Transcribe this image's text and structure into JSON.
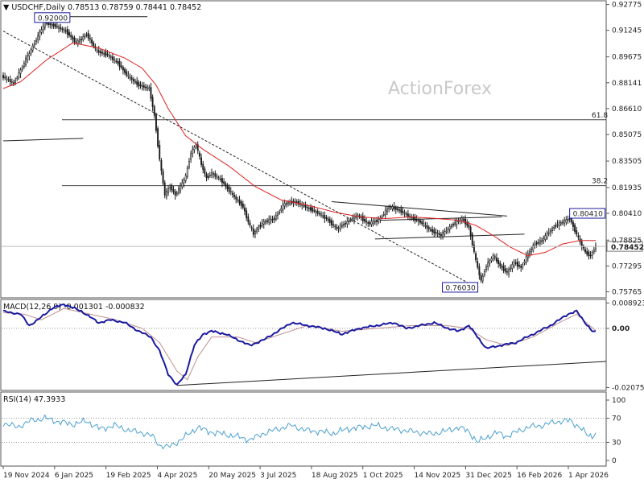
{
  "chart_data": {
    "type": "candlestick",
    "symbol": "USDCHF",
    "timeframe": "Daily",
    "ohlc_header": {
      "open": "0.78513",
      "high": "0.78759",
      "low": "0.78441",
      "close": "0.78452"
    },
    "watermark": "ActionForex",
    "price_ticks": [
      "0.92775",
      "0.91245",
      "0.89675",
      "0.88141",
      "0.86610",
      "0.85075",
      "0.83505",
      "0.81935",
      "0.80410",
      "0.78825",
      "0.77295",
      "0.75765"
    ],
    "price_ylim": [
      0.7555,
      0.9285
    ],
    "last_price": "0.78452",
    "x_tick_labels": [
      "19 Nov 2024",
      "6 Jan 2025",
      "19 Feb 2025",
      "4 Apr 2025",
      "20 May 2025",
      "3 Jul 2025",
      "18 Aug 2025",
      "1 Oct 2025",
      "14 Nov 2025",
      "31 Dec 2025",
      "16 Feb 2026",
      "1 Apr 2026"
    ],
    "price_labels": [
      {
        "text": "0.92000",
        "date_index": 18,
        "price": 0.92
      },
      {
        "text": "0.80410",
        "date_index": 326,
        "price": 0.8041
      },
      {
        "text": "0.76030",
        "date_index": 275,
        "price": 0.7603
      }
    ],
    "fib_levels": [
      {
        "label": "61.8",
        "price": 0.8595
      },
      {
        "label": "38.2",
        "price": 0.8205
      }
    ],
    "close_series": [
      {
        "i": 0,
        "v": 0.885
      },
      {
        "i": 6,
        "v": 0.881
      },
      {
        "i": 12,
        "v": 0.893
      },
      {
        "i": 18,
        "v": 0.905
      },
      {
        "i": 24,
        "v": 0.917
      },
      {
        "i": 30,
        "v": 0.915
      },
      {
        "i": 36,
        "v": 0.912
      },
      {
        "i": 42,
        "v": 0.905
      },
      {
        "i": 48,
        "v": 0.91
      },
      {
        "i": 54,
        "v": 0.9
      },
      {
        "i": 60,
        "v": 0.898
      },
      {
        "i": 66,
        "v": 0.893
      },
      {
        "i": 72,
        "v": 0.885
      },
      {
        "i": 78,
        "v": 0.88
      },
      {
        "i": 84,
        "v": 0.878
      },
      {
        "i": 87,
        "v": 0.862
      },
      {
        "i": 90,
        "v": 0.836
      },
      {
        "i": 93,
        "v": 0.815
      },
      {
        "i": 96,
        "v": 0.82
      },
      {
        "i": 99,
        "v": 0.815
      },
      {
        "i": 102,
        "v": 0.82
      },
      {
        "i": 105,
        "v": 0.826
      },
      {
        "i": 108,
        "v": 0.84
      },
      {
        "i": 111,
        "v": 0.845
      },
      {
        "i": 114,
        "v": 0.833
      },
      {
        "i": 117,
        "v": 0.825
      },
      {
        "i": 120,
        "v": 0.828
      },
      {
        "i": 126,
        "v": 0.823
      },
      {
        "i": 132,
        "v": 0.815
      },
      {
        "i": 138,
        "v": 0.808
      },
      {
        "i": 141,
        "v": 0.799
      },
      {
        "i": 144,
        "v": 0.792
      },
      {
        "i": 147,
        "v": 0.796
      },
      {
        "i": 150,
        "v": 0.799
      },
      {
        "i": 156,
        "v": 0.801
      },
      {
        "i": 162,
        "v": 0.81
      },
      {
        "i": 168,
        "v": 0.811
      },
      {
        "i": 174,
        "v": 0.808
      },
      {
        "i": 180,
        "v": 0.805
      },
      {
        "i": 186,
        "v": 0.801
      },
      {
        "i": 192,
        "v": 0.795
      },
      {
        "i": 198,
        "v": 0.799
      },
      {
        "i": 204,
        "v": 0.803
      },
      {
        "i": 210,
        "v": 0.798
      },
      {
        "i": 216,
        "v": 0.8
      },
      {
        "i": 222,
        "v": 0.808
      },
      {
        "i": 228,
        "v": 0.806
      },
      {
        "i": 234,
        "v": 0.802
      },
      {
        "i": 240,
        "v": 0.799
      },
      {
        "i": 246,
        "v": 0.794
      },
      {
        "i": 252,
        "v": 0.791
      },
      {
        "i": 258,
        "v": 0.797
      },
      {
        "i": 264,
        "v": 0.801
      },
      {
        "i": 268,
        "v": 0.796
      },
      {
        "i": 272,
        "v": 0.776
      },
      {
        "i": 275,
        "v": 0.764
      },
      {
        "i": 278,
        "v": 0.773
      },
      {
        "i": 282,
        "v": 0.779
      },
      {
        "i": 286,
        "v": 0.773
      },
      {
        "i": 290,
        "v": 0.769
      },
      {
        "i": 294,
        "v": 0.775
      },
      {
        "i": 298,
        "v": 0.772
      },
      {
        "i": 302,
        "v": 0.78
      },
      {
        "i": 306,
        "v": 0.786
      },
      {
        "i": 310,
        "v": 0.788
      },
      {
        "i": 314,
        "v": 0.793
      },
      {
        "i": 318,
        "v": 0.797
      },
      {
        "i": 322,
        "v": 0.799
      },
      {
        "i": 326,
        "v": 0.801
      },
      {
        "i": 329,
        "v": 0.794
      },
      {
        "i": 332,
        "v": 0.787
      },
      {
        "i": 335,
        "v": 0.781
      },
      {
        "i": 338,
        "v": 0.779
      },
      {
        "i": 341,
        "v": 0.785
      }
    ],
    "ma_series": [
      {
        "i": 0,
        "v": 0.878
      },
      {
        "i": 10,
        "v": 0.882
      },
      {
        "i": 25,
        "v": 0.895
      },
      {
        "i": 40,
        "v": 0.905
      },
      {
        "i": 55,
        "v": 0.902
      },
      {
        "i": 70,
        "v": 0.896
      },
      {
        "i": 80,
        "v": 0.89
      },
      {
        "i": 88,
        "v": 0.88
      },
      {
        "i": 95,
        "v": 0.866
      },
      {
        "i": 105,
        "v": 0.85
      },
      {
        "i": 115,
        "v": 0.842
      },
      {
        "i": 130,
        "v": 0.832
      },
      {
        "i": 145,
        "v": 0.82
      },
      {
        "i": 160,
        "v": 0.812
      },
      {
        "i": 175,
        "v": 0.809
      },
      {
        "i": 190,
        "v": 0.805
      },
      {
        "i": 205,
        "v": 0.802
      },
      {
        "i": 220,
        "v": 0.801
      },
      {
        "i": 235,
        "v": 0.802
      },
      {
        "i": 250,
        "v": 0.801
      },
      {
        "i": 262,
        "v": 0.8
      },
      {
        "i": 272,
        "v": 0.797
      },
      {
        "i": 282,
        "v": 0.791
      },
      {
        "i": 292,
        "v": 0.784
      },
      {
        "i": 302,
        "v": 0.779
      },
      {
        "i": 312,
        "v": 0.781
      },
      {
        "i": 322,
        "v": 0.786
      },
      {
        "i": 332,
        "v": 0.788
      },
      {
        "i": 341,
        "v": 0.788
      }
    ],
    "macd": {
      "label": "MACD(12,26,9) -0.001301 -0.000832",
      "ticks": [
        "0.008923",
        "0.00",
        "-0.020759"
      ],
      "ylim": [
        -0.0212,
        0.0093
      ],
      "macd_series": [
        {
          "i": 0,
          "v": 0.006
        },
        {
          "i": 10,
          "v": 0.005
        },
        {
          "i": 15,
          "v": 0.001
        },
        {
          "i": 20,
          "v": 0.003
        },
        {
          "i": 28,
          "v": 0.007
        },
        {
          "i": 35,
          "v": 0.0085
        },
        {
          "i": 45,
          "v": 0.006
        },
        {
          "i": 55,
          "v": 0.002
        },
        {
          "i": 62,
          "v": 0.003
        },
        {
          "i": 70,
          "v": 0.002
        },
        {
          "i": 78,
          "v": -0.001
        },
        {
          "i": 85,
          "v": -0.003
        },
        {
          "i": 90,
          "v": -0.008
        },
        {
          "i": 95,
          "v": -0.016
        },
        {
          "i": 100,
          "v": -0.02
        },
        {
          "i": 105,
          "v": -0.016
        },
        {
          "i": 110,
          "v": -0.006
        },
        {
          "i": 115,
          "v": -0.002
        },
        {
          "i": 120,
          "v": -0.001
        },
        {
          "i": 128,
          "v": -0.002
        },
        {
          "i": 135,
          "v": -0.004
        },
        {
          "i": 142,
          "v": -0.006
        },
        {
          "i": 150,
          "v": -0.004
        },
        {
          "i": 158,
          "v": -0.001
        },
        {
          "i": 166,
          "v": 0.002
        },
        {
          "i": 175,
          "v": 0.001
        },
        {
          "i": 185,
          "v": 0.0
        },
        {
          "i": 195,
          "v": -0.002
        },
        {
          "i": 205,
          "v": 0.0
        },
        {
          "i": 215,
          "v": 0.001
        },
        {
          "i": 225,
          "v": 0.002
        },
        {
          "i": 232,
          "v": 0.0
        },
        {
          "i": 240,
          "v": 0.001
        },
        {
          "i": 248,
          "v": 0.002
        },
        {
          "i": 256,
          "v": 0.0
        },
        {
          "i": 262,
          "v": -0.001
        },
        {
          "i": 268,
          "v": 0.001
        },
        {
          "i": 273,
          "v": -0.003
        },
        {
          "i": 278,
          "v": -0.007
        },
        {
          "i": 286,
          "v": -0.006
        },
        {
          "i": 295,
          "v": -0.005
        },
        {
          "i": 305,
          "v": -0.002
        },
        {
          "i": 315,
          "v": 0.001
        },
        {
          "i": 325,
          "v": 0.005
        },
        {
          "i": 330,
          "v": 0.006
        },
        {
          "i": 335,
          "v": 0.002
        },
        {
          "i": 339,
          "v": -0.001
        },
        {
          "i": 341,
          "v": -0.0013
        }
      ],
      "signal_series": [
        {
          "i": 0,
          "v": 0.0055
        },
        {
          "i": 12,
          "v": 0.005
        },
        {
          "i": 22,
          "v": 0.003
        },
        {
          "i": 35,
          "v": 0.007
        },
        {
          "i": 50,
          "v": 0.005
        },
        {
          "i": 65,
          "v": 0.003
        },
        {
          "i": 80,
          "v": 0.0
        },
        {
          "i": 90,
          "v": -0.005
        },
        {
          "i": 100,
          "v": -0.015
        },
        {
          "i": 106,
          "v": -0.018
        },
        {
          "i": 112,
          "v": -0.01
        },
        {
          "i": 120,
          "v": -0.003
        },
        {
          "i": 135,
          "v": -0.003
        },
        {
          "i": 145,
          "v": -0.005
        },
        {
          "i": 160,
          "v": -0.002
        },
        {
          "i": 175,
          "v": 0.001
        },
        {
          "i": 195,
          "v": -0.001
        },
        {
          "i": 215,
          "v": 0.0
        },
        {
          "i": 235,
          "v": 0.001
        },
        {
          "i": 255,
          "v": 0.001
        },
        {
          "i": 268,
          "v": 0.0
        },
        {
          "i": 278,
          "v": -0.004
        },
        {
          "i": 290,
          "v": -0.006
        },
        {
          "i": 305,
          "v": -0.003
        },
        {
          "i": 320,
          "v": 0.002
        },
        {
          "i": 330,
          "v": 0.005
        },
        {
          "i": 341,
          "v": -0.0008
        }
      ]
    },
    "rsi": {
      "label": "RSI(14) 47.3933",
      "ticks": [
        "100",
        "70",
        "30",
        "0"
      ],
      "ylim": [
        0,
        100
      ],
      "series": [
        {
          "i": 0,
          "v": 62
        },
        {
          "i": 8,
          "v": 55
        },
        {
          "i": 16,
          "v": 66
        },
        {
          "i": 24,
          "v": 70
        },
        {
          "i": 32,
          "v": 64
        },
        {
          "i": 40,
          "v": 60
        },
        {
          "i": 48,
          "v": 65
        },
        {
          "i": 56,
          "v": 52
        },
        {
          "i": 64,
          "v": 58
        },
        {
          "i": 72,
          "v": 50
        },
        {
          "i": 80,
          "v": 46
        },
        {
          "i": 86,
          "v": 40
        },
        {
          "i": 90,
          "v": 25
        },
        {
          "i": 95,
          "v": 22
        },
        {
          "i": 100,
          "v": 30
        },
        {
          "i": 106,
          "v": 42
        },
        {
          "i": 112,
          "v": 55
        },
        {
          "i": 118,
          "v": 48
        },
        {
          "i": 126,
          "v": 44
        },
        {
          "i": 134,
          "v": 40
        },
        {
          "i": 142,
          "v": 34
        },
        {
          "i": 150,
          "v": 45
        },
        {
          "i": 158,
          "v": 52
        },
        {
          "i": 166,
          "v": 58
        },
        {
          "i": 174,
          "v": 50
        },
        {
          "i": 182,
          "v": 48
        },
        {
          "i": 190,
          "v": 45
        },
        {
          "i": 198,
          "v": 52
        },
        {
          "i": 206,
          "v": 55
        },
        {
          "i": 214,
          "v": 58
        },
        {
          "i": 222,
          "v": 53
        },
        {
          "i": 230,
          "v": 50
        },
        {
          "i": 238,
          "v": 47
        },
        {
          "i": 246,
          "v": 44
        },
        {
          "i": 254,
          "v": 48
        },
        {
          "i": 262,
          "v": 55
        },
        {
          "i": 268,
          "v": 48
        },
        {
          "i": 273,
          "v": 30
        },
        {
          "i": 278,
          "v": 38
        },
        {
          "i": 284,
          "v": 46
        },
        {
          "i": 290,
          "v": 40
        },
        {
          "i": 296,
          "v": 48
        },
        {
          "i": 302,
          "v": 55
        },
        {
          "i": 310,
          "v": 58
        },
        {
          "i": 318,
          "v": 64
        },
        {
          "i": 326,
          "v": 66
        },
        {
          "i": 332,
          "v": 55
        },
        {
          "i": 336,
          "v": 42
        },
        {
          "i": 339,
          "v": 40
        },
        {
          "i": 341,
          "v": 47
        }
      ]
    },
    "colors": {
      "candle": "#1a1a1a",
      "ma": "#e02020",
      "macd": "#1a1aa0",
      "macd_signal": "#c09090",
      "rsi": "#4aa0d0",
      "trendline": "#222222",
      "fib": "#444444",
      "label_border": "#1a1aa0",
      "grid_dots": "#999999"
    }
  }
}
